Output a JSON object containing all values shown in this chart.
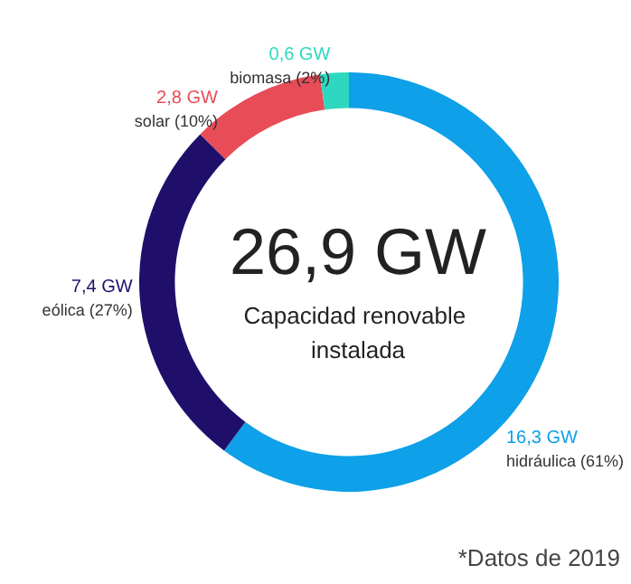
{
  "chart_data": {
    "type": "donut",
    "title": "26,9 GW",
    "subtitle": "Capacidad renovable instalada",
    "categories": [
      "hidráulica (61%)",
      "eólica (27%)",
      "solar (10%)",
      "biomasa (2%)"
    ],
    "values": [
      16.3,
      7.4,
      2.8,
      0.6
    ],
    "value_labels": [
      "16,3 GW",
      "7,4 GW",
      "2,8 GW",
      "0,6 GW"
    ],
    "colors": [
      "#0ea0e8",
      "#1f0f6b",
      "#e84c57",
      "#2ed8c0"
    ],
    "annotations": [
      "*Datos de 2019"
    ]
  }
}
